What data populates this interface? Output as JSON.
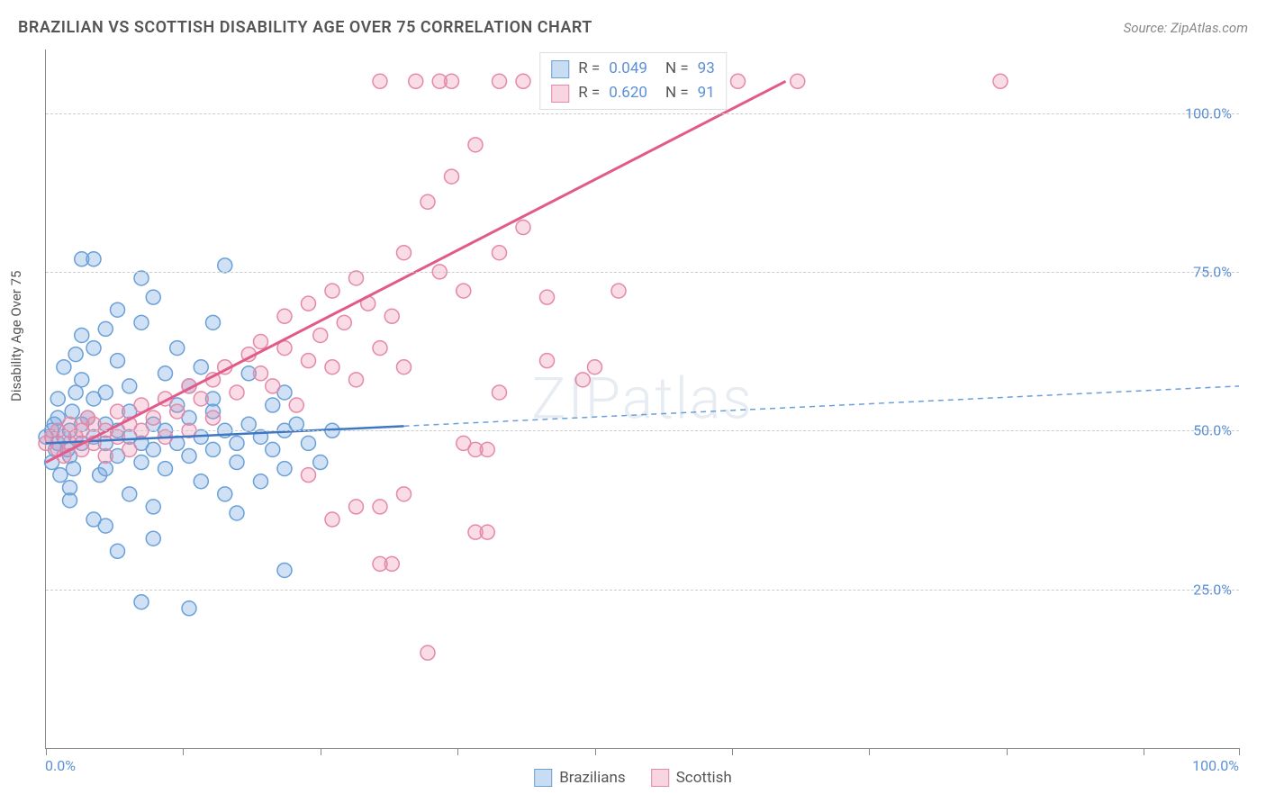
{
  "title": "BRAZILIAN VS SCOTTISH DISABILITY AGE OVER 75 CORRELATION CHART",
  "source": "Source: ZipAtlas.com",
  "watermark": "ZIPatlas",
  "ylabel": "Disability Age Over 75",
  "xlim": [
    0,
    100
  ],
  "ylim": [
    0,
    110
  ],
  "xtick_positions": [
    0,
    11.5,
    23,
    34.5,
    46,
    57.5,
    69,
    80.5,
    92,
    100
  ],
  "xtick_labels": {
    "left": "0.0%",
    "right": "100.0%"
  },
  "ytick_positions": [
    25,
    50,
    75,
    100
  ],
  "ytick_labels": [
    "25.0%",
    "50.0%",
    "75.0%",
    "100.0%"
  ],
  "grid_color": "#cccccc",
  "background_color": "#ffffff",
  "axis_color": "#888888",
  "tick_label_color": "#5b8fd6",
  "series": [
    {
      "name": "Brazilians",
      "color_fill": "rgba(120,170,225,0.35)",
      "color_stroke": "#6aa0d8",
      "swatch_fill": "#c9ddf2",
      "swatch_border": "#6aa0d8",
      "line_color": "#3c78c3",
      "line_width": 2.5,
      "dash_color": "#6aa0d8",
      "marker_radius": 8,
      "R": "0.049",
      "N": "93",
      "trend": {
        "x1": 0,
        "y1": 48,
        "x2": 100,
        "y2": 57,
        "solid_to_x": 30
      },
      "points": [
        [
          0,
          49
        ],
        [
          0.5,
          50
        ],
        [
          1,
          48
        ],
        [
          1,
          52
        ],
        [
          0.8,
          47
        ],
        [
          1.5,
          49
        ],
        [
          2,
          50
        ],
        [
          2,
          46
        ],
        [
          2.2,
          53
        ],
        [
          0.5,
          45
        ],
        [
          1,
          55
        ],
        [
          3,
          48
        ],
        [
          3,
          51
        ],
        [
          1.2,
          43
        ],
        [
          2.5,
          56
        ],
        [
          1.8,
          47
        ],
        [
          0.7,
          51
        ],
        [
          2.3,
          44
        ],
        [
          3.5,
          52
        ],
        [
          4,
          49
        ],
        [
          4,
          55
        ],
        [
          5,
          48
        ],
        [
          5,
          51
        ],
        [
          3,
          58
        ],
        [
          2,
          41
        ],
        [
          6,
          50
        ],
        [
          6,
          46
        ],
        [
          4.5,
          43
        ],
        [
          5,
          56
        ],
        [
          7,
          49
        ],
        [
          7,
          53
        ],
        [
          8,
          48
        ],
        [
          8,
          45
        ],
        [
          9,
          51
        ],
        [
          9,
          47
        ],
        [
          10,
          50
        ],
        [
          10,
          44
        ],
        [
          11,
          48
        ],
        [
          12,
          52
        ],
        [
          12,
          46
        ],
        [
          13,
          49
        ],
        [
          14,
          47
        ],
        [
          14,
          53
        ],
        [
          15,
          50
        ],
        [
          16,
          48
        ],
        [
          16,
          45
        ],
        [
          17,
          51
        ],
        [
          18,
          49
        ],
        [
          19,
          47
        ],
        [
          20,
          50
        ],
        [
          20,
          44
        ],
        [
          4,
          63
        ],
        [
          5,
          66
        ],
        [
          6,
          61
        ],
        [
          8,
          67
        ],
        [
          9,
          71
        ],
        [
          3,
          77
        ],
        [
          4,
          77
        ],
        [
          10,
          59
        ],
        [
          12,
          57
        ],
        [
          14,
          55
        ],
        [
          15,
          76
        ],
        [
          8,
          74
        ],
        [
          11,
          63
        ],
        [
          7,
          40
        ],
        [
          9,
          38
        ],
        [
          13,
          42
        ],
        [
          15,
          40
        ],
        [
          16,
          37
        ],
        [
          8,
          23
        ],
        [
          12,
          22
        ],
        [
          6,
          31
        ],
        [
          20,
          28
        ],
        [
          5,
          35
        ],
        [
          18,
          42
        ],
        [
          22,
          48
        ],
        [
          21,
          51
        ],
        [
          23,
          45
        ],
        [
          24,
          50
        ],
        [
          20,
          56
        ],
        [
          17,
          59
        ],
        [
          2,
          39
        ],
        [
          4,
          36
        ],
        [
          7,
          57
        ],
        [
          11,
          54
        ],
        [
          13,
          60
        ],
        [
          6,
          69
        ],
        [
          3,
          65
        ],
        [
          9,
          33
        ],
        [
          14,
          67
        ],
        [
          5,
          44
        ],
        [
          1.5,
          60
        ],
        [
          2.5,
          62
        ],
        [
          19,
          54
        ]
      ]
    },
    {
      "name": "Scottish",
      "color_fill": "rgba(235,140,170,0.30)",
      "color_stroke": "#e589a8",
      "swatch_fill": "#f7d6e1",
      "swatch_border": "#e589a8",
      "line_color": "#e15a8a",
      "line_width": 3,
      "marker_radius": 8,
      "R": "0.620",
      "N": "91",
      "trend": {
        "x1": 0,
        "y1": 45,
        "x2": 62,
        "y2": 105,
        "solid_to_x": 62
      },
      "points": [
        [
          0,
          48
        ],
        [
          0.5,
          49
        ],
        [
          1,
          47
        ],
        [
          1,
          50
        ],
        [
          1.5,
          46
        ],
        [
          2,
          48
        ],
        [
          2,
          51
        ],
        [
          2.5,
          49
        ],
        [
          3,
          47
        ],
        [
          3,
          50
        ],
        [
          3.5,
          52
        ],
        [
          4,
          48
        ],
        [
          4,
          51
        ],
        [
          5,
          50
        ],
        [
          5,
          46
        ],
        [
          6,
          49
        ],
        [
          6,
          53
        ],
        [
          7,
          51
        ],
        [
          7,
          47
        ],
        [
          8,
          50
        ],
        [
          8,
          54
        ],
        [
          9,
          52
        ],
        [
          10,
          55
        ],
        [
          10,
          49
        ],
        [
          11,
          53
        ],
        [
          12,
          57
        ],
        [
          12,
          50
        ],
        [
          13,
          55
        ],
        [
          14,
          58
        ],
        [
          14,
          52
        ],
        [
          15,
          60
        ],
        [
          16,
          56
        ],
        [
          17,
          62
        ],
        [
          18,
          59
        ],
        [
          18,
          64
        ],
        [
          19,
          57
        ],
        [
          20,
          63
        ],
        [
          20,
          68
        ],
        [
          21,
          54
        ],
        [
          22,
          61
        ],
        [
          22,
          70
        ],
        [
          23,
          65
        ],
        [
          24,
          60
        ],
        [
          24,
          72
        ],
        [
          25,
          67
        ],
        [
          26,
          74
        ],
        [
          26,
          58
        ],
        [
          27,
          70
        ],
        [
          28,
          105
        ],
        [
          28,
          63
        ],
        [
          29,
          68
        ],
        [
          30,
          78
        ],
        [
          30,
          60
        ],
        [
          31,
          105
        ],
        [
          32,
          86
        ],
        [
          33,
          105
        ],
        [
          33,
          75
        ],
        [
          34,
          90
        ],
        [
          34,
          105
        ],
        [
          35,
          72
        ],
        [
          36,
          95
        ],
        [
          38,
          105
        ],
        [
          38,
          78
        ],
        [
          40,
          82
        ],
        [
          40,
          105
        ],
        [
          42,
          71
        ],
        [
          44,
          105
        ],
        [
          46,
          60
        ],
        [
          47,
          105
        ],
        [
          50,
          105
        ],
        [
          55,
          105
        ],
        [
          58,
          105
        ],
        [
          63,
          105
        ],
        [
          80,
          105
        ],
        [
          48,
          72
        ],
        [
          45,
          58
        ],
        [
          42,
          61
        ],
        [
          38,
          56
        ],
        [
          35,
          48
        ],
        [
          30,
          40
        ],
        [
          28,
          38
        ],
        [
          26,
          38
        ],
        [
          24,
          36
        ],
        [
          22,
          43
        ],
        [
          29,
          29
        ],
        [
          28,
          29
        ],
        [
          32,
          15
        ],
        [
          36,
          47
        ],
        [
          37,
          47
        ],
        [
          36,
          34
        ],
        [
          37,
          34
        ]
      ]
    }
  ],
  "legend_top_label_R": "R =",
  "legend_top_label_N": "N =",
  "legend_bottom": [
    {
      "label": "Brazilians",
      "series": 0
    },
    {
      "label": "Scottish",
      "series": 1
    }
  ]
}
